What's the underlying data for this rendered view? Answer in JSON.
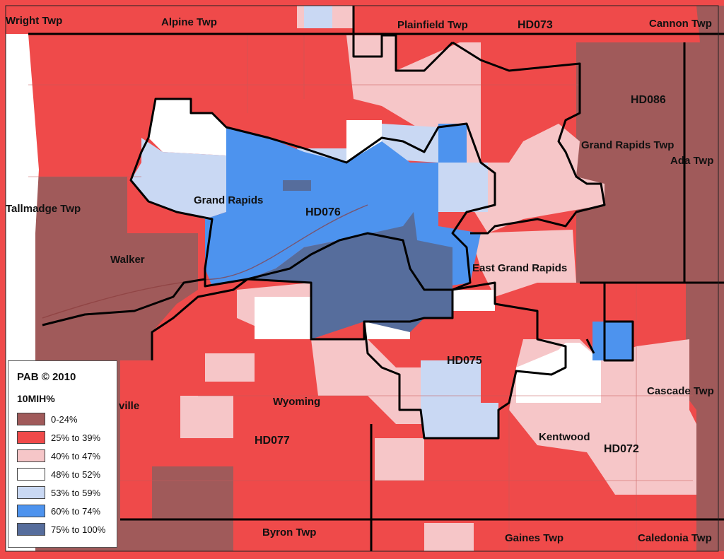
{
  "map": {
    "place_labels": [
      "Wright Twp",
      "Alpine Twp",
      "Plainfield Twp",
      "Cannon Twp",
      "Grand Rapids Twp",
      "Ada Twp",
      "Tallmadge Twp",
      "Walker",
      "Grand Rapids",
      "East Grand Rapids",
      "Wyoming",
      "Kentwood",
      "Cascade Twp",
      "Byron Twp",
      "Gaines Twp",
      "Caledonia Twp",
      "ville"
    ],
    "district_labels": [
      "HD073",
      "HD086",
      "HD076",
      "HD075",
      "HD077",
      "HD072"
    ]
  },
  "legend": {
    "title": "PAB © 2010",
    "field": "10MIH%",
    "classes": [
      {
        "label": "0-24%",
        "color": "#a05a5a"
      },
      {
        "label": "25% to 39%",
        "color": "#ef4a4a"
      },
      {
        "label": "40% to 47%",
        "color": "#f6c6c8"
      },
      {
        "label": "48% to 52%",
        "color": "#ffffff"
      },
      {
        "label": "53% to 59%",
        "color": "#c9d8f3"
      },
      {
        "label": "60% to 74%",
        "color": "#4d93ee"
      },
      {
        "label": "75% to 100%",
        "color": "#566d9c"
      }
    ]
  }
}
